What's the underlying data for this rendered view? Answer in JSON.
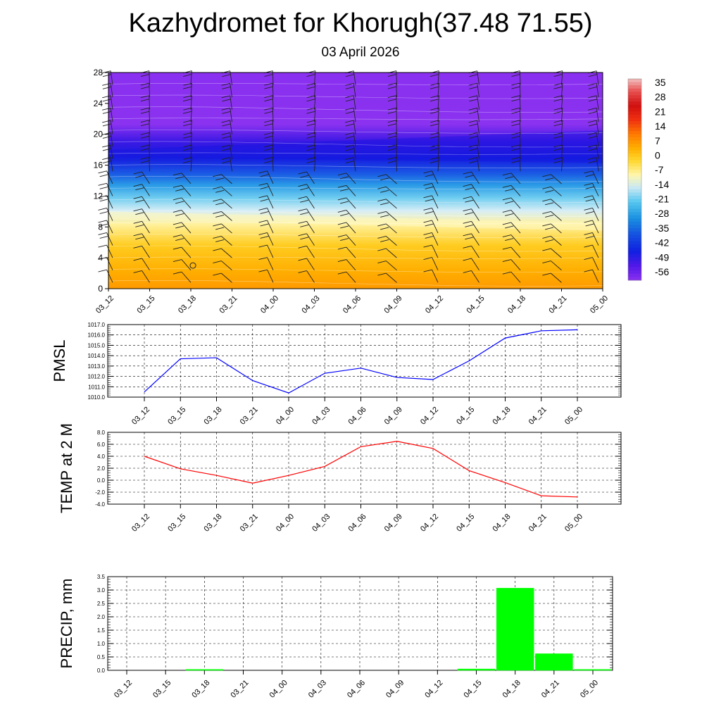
{
  "header": {
    "title": "Kazhydromet for Khorugh(37.48 71.55)",
    "date": "03 April 2026"
  },
  "chart_data": [
    {
      "type": "heatmap",
      "name": "temperature-cross-section",
      "x_labels": [
        "03_12",
        "03_15",
        "03_18",
        "03_21",
        "04_00",
        "04_03",
        "04_06",
        "04_09",
        "04_12",
        "04_15",
        "04_18",
        "04_21",
        "05_00"
      ],
      "y_ticks": [
        0,
        4,
        8,
        12,
        16,
        20,
        24,
        28
      ],
      "ylim": [
        0,
        28
      ],
      "colorbar_labels": [
        "35",
        "28",
        "21",
        "14",
        "7",
        "0",
        "-7",
        "-14",
        "-21",
        "-28",
        "-35",
        "-42",
        "-49",
        "-56"
      ],
      "colorbar_stops": [
        {
          "value": 38,
          "color": "#f2c0c0"
        },
        {
          "value": 32,
          "color": "#e85050"
        },
        {
          "value": 25,
          "color": "#d01010"
        },
        {
          "value": 18,
          "color": "#f03010"
        },
        {
          "value": 11,
          "color": "#ff7a00"
        },
        {
          "value": 4,
          "color": "#ffb000"
        },
        {
          "value": -2,
          "color": "#ffd830"
        },
        {
          "value": -9,
          "color": "#fff7b0"
        },
        {
          "value": -15,
          "color": "#c8e8f4"
        },
        {
          "value": -22,
          "color": "#55c6ef"
        },
        {
          "value": -30,
          "color": "#1a90e0"
        },
        {
          "value": -38,
          "color": "#1450e0"
        },
        {
          "value": -46,
          "color": "#1020e0"
        },
        {
          "value": -53,
          "color": "#5018e8"
        },
        {
          "value": -60,
          "color": "#8a30f0"
        }
      ]
    },
    {
      "type": "line",
      "name": "pmsl",
      "ylabel": "PMSL",
      "x": [
        "03_12",
        "03_15",
        "03_18",
        "03_21",
        "04_00",
        "04_03",
        "04_06",
        "04_09",
        "04_12",
        "04_15",
        "04_18",
        "04_21",
        "05_00"
      ],
      "values": [
        1010.5,
        1013.7,
        1013.8,
        1011.6,
        1010.4,
        1012.3,
        1012.8,
        1011.9,
        1011.7,
        1013.5,
        1015.7,
        1016.4,
        1016.5
      ],
      "ylim": [
        1010.0,
        1017.0
      ],
      "y_ticks": [
        "1010.0",
        "1011.0",
        "1012.0",
        "1013.0",
        "1014.0",
        "1015.0",
        "1016.0",
        "1017.0"
      ],
      "color": "#0000ff"
    },
    {
      "type": "line",
      "name": "temp-2m",
      "ylabel": "TEMP at 2 M",
      "x": [
        "03_12",
        "03_15",
        "03_18",
        "03_21",
        "04_00",
        "04_03",
        "04_06",
        "04_09",
        "04_12",
        "04_15",
        "04_18",
        "04_21",
        "05_00"
      ],
      "values": [
        4.0,
        1.9,
        0.8,
        -0.5,
        0.8,
        2.3,
        5.6,
        6.5,
        5.3,
        1.6,
        -0.4,
        -2.6,
        -2.8
      ],
      "ylim": [
        -4.0,
        8.0
      ],
      "y_ticks": [
        "-4.0",
        "-2.0",
        "0.0",
        "2.0",
        "4.0",
        "6.0",
        "8.0"
      ],
      "color": "#ff0000"
    },
    {
      "type": "bar",
      "name": "precip",
      "ylabel": "PRECIP, mm",
      "categories": [
        "03_12",
        "03_15",
        "03_18",
        "03_21",
        "04_00",
        "04_03",
        "04_06",
        "04_09",
        "04_12",
        "04_15",
        "04_18",
        "04_21",
        "05_00"
      ],
      "values": [
        0.0,
        0.0,
        0.02,
        0.0,
        0.0,
        0.0,
        0.0,
        0.0,
        0.0,
        0.05,
        3.07,
        0.62,
        0.02
      ],
      "ylim": [
        0.0,
        3.5
      ],
      "y_ticks": [
        "0.0",
        "0.5",
        "1.0",
        "1.5",
        "2.0",
        "2.5",
        "3.0",
        "3.5"
      ],
      "color": "#00ff00"
    }
  ]
}
